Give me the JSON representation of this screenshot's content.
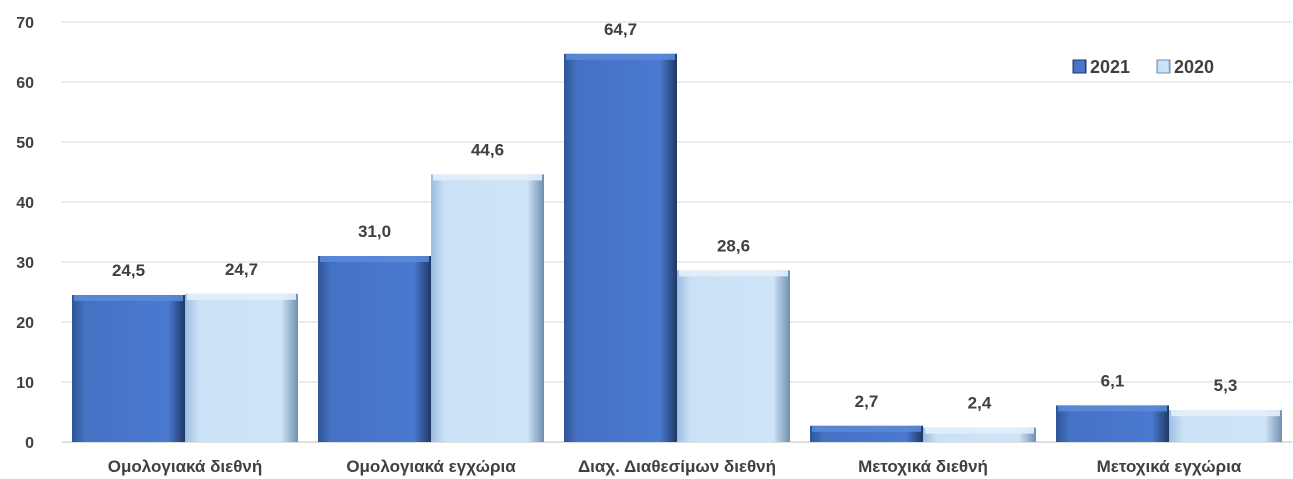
{
  "chart_data": {
    "type": "bar",
    "categories": [
      "Ομολογιακά διεθνή",
      "Ομολογιακά εγχώρια",
      "Διαχ. Διαθεσίμων διεθνή",
      "Μετοχικά διεθνή",
      "Μετοχικά εγχώρια"
    ],
    "series": [
      {
        "name": "2021",
        "values": [
          24.5,
          31.0,
          64.7,
          2.7,
          6.1
        ],
        "labels": [
          "24,5",
          "31,0",
          "64,7",
          "2,7",
          "6,1"
        ],
        "color": "#4472c4"
      },
      {
        "name": "2020",
        "values": [
          24.7,
          44.6,
          28.6,
          2.4,
          5.3
        ],
        "labels": [
          "24,7",
          "44,6",
          "28,6",
          "2,4",
          "5,3"
        ],
        "color": "#c5dff5"
      }
    ],
    "yticks": [
      "0",
      "10",
      "20",
      "30",
      "40",
      "50",
      "60",
      "70"
    ],
    "ylim": [
      0,
      70
    ],
    "grid": true,
    "legend_position": "top-right",
    "title": "",
    "xlabel": "",
    "ylabel": ""
  }
}
